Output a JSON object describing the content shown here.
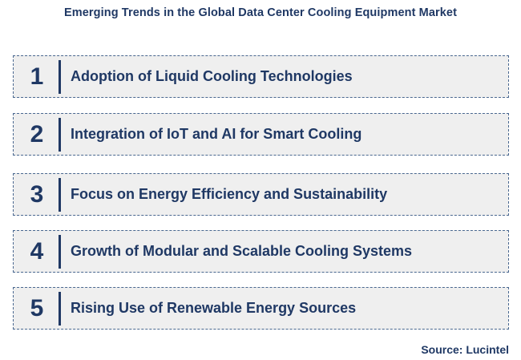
{
  "title": "Emerging Trends in the Global Data Center Cooling Equipment Market",
  "trends": [
    {
      "number": "1",
      "label": "Adoption of Liquid Cooling Technologies"
    },
    {
      "number": "2",
      "label": "Integration of IoT and AI for Smart Cooling"
    },
    {
      "number": "3",
      "label": "Focus on Energy Efficiency and Sustainability"
    },
    {
      "number": "4",
      "label": "Growth of Modular and Scalable Cooling Systems"
    },
    {
      "number": "5",
      "label": "Rising Use of Renewable Energy Sources"
    }
  ],
  "source": "Source: Lucintel",
  "colors": {
    "text": "#1f3864",
    "box_fill": "#efefef",
    "box_border": "#4a6890"
  }
}
